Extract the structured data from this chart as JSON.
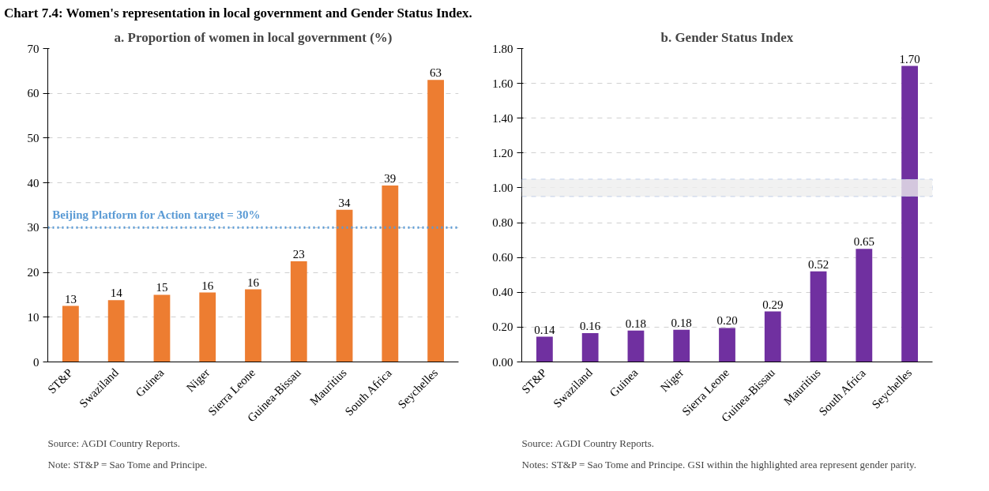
{
  "chart_data": [
    {
      "type": "bar",
      "title": "a. Proportion of women in local government (%)",
      "annotations": [
        "Chart 7.4: Women's representation in local government and Gender Status Index.",
        "Source: AGDI Country Reports.",
        "Note: ST&P = Sao Tome and Principe."
      ],
      "categories": [
        "ST&P",
        "Swaziland",
        "Guinea",
        "Niger",
        "Sierra Leone",
        "Guinea-Bissau",
        "Mauritius",
        "South Africa",
        "Seychelles"
      ],
      "values": [
        12.5,
        13.8,
        15.0,
        15.5,
        16.2,
        22.5,
        34.0,
        39.4,
        63.0
      ],
      "value_labels": [
        "13",
        "14",
        "15",
        "16",
        "16",
        "23",
        "34",
        "39",
        "63"
      ],
      "color": "#ed7d31",
      "ylim": [
        0,
        70
      ],
      "yticks": [
        0,
        10,
        20,
        30,
        40,
        50,
        60,
        70
      ],
      "grid": "y",
      "ref_lines": [
        {
          "axis": "y",
          "value": 30,
          "label": "Beijing Platform for Action target = 30%",
          "color": "#5b9bd5",
          "line_style": "dotted"
        }
      ]
    },
    {
      "type": "bar",
      "title": "b. Gender Status Index",
      "annotations": [
        "Source: AGDI Country Reports.",
        "Notes: ST&P = Sao Tome and Principe. GSI within the highlighted area represent gender parity."
      ],
      "categories": [
        "ST&P",
        "Swaziland",
        "Guinea",
        "Niger",
        "Sierra Leone",
        "Guinea-Bissau",
        "Mauritius",
        "South Africa",
        "Seychelles"
      ],
      "values": [
        0.145,
        0.165,
        0.18,
        0.185,
        0.195,
        0.29,
        0.52,
        0.65,
        1.7
      ],
      "value_labels": [
        "0.14",
        "0.16",
        "0.18",
        "0.18",
        "0.20",
        "0.29",
        "0.52",
        "0.65",
        "1.70"
      ],
      "color": "#7030a0",
      "ylim": [
        0,
        1.8
      ],
      "yticks": [
        {
          "value": 0,
          "label": "0.00"
        },
        {
          "value": 0.2,
          "label": "0.20"
        },
        {
          "value": 0.4,
          "label": "0.40"
        },
        {
          "value": 0.6,
          "label": "0.60"
        },
        {
          "value": 0.8,
          "label": "0.80"
        },
        {
          "value": 1.0,
          "label": "1.00"
        },
        {
          "value": 1.2,
          "label": "1.20"
        },
        {
          "value": 1.4,
          "label": "1.40"
        },
        {
          "value": 1.6,
          "label": "1.60"
        },
        {
          "value": 1.8,
          "label": "1.80"
        }
      ],
      "grid": "y",
      "bands": [
        {
          "axis": "y",
          "from": 0.95,
          "to": 1.05,
          "color": "#4472c4"
        }
      ]
    }
  ]
}
